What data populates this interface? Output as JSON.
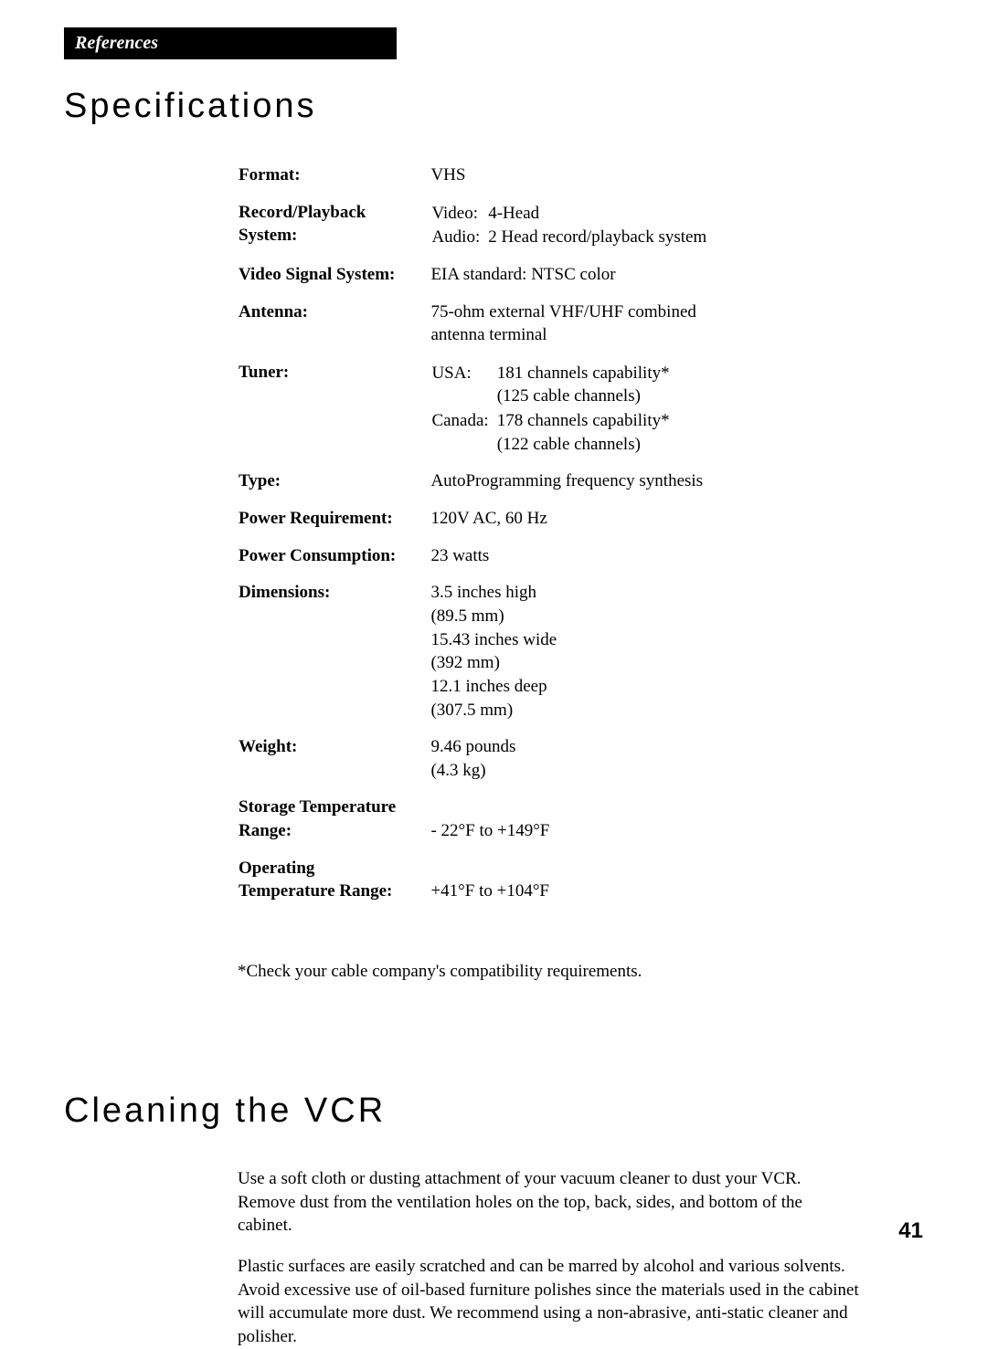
{
  "header": {
    "label": "References"
  },
  "specifications": {
    "title": "Specifications",
    "rows": {
      "format": {
        "label": "Format:",
        "value": "VHS"
      },
      "record": {
        "label1": "Record/Playback",
        "label2": "System:",
        "k1": "Video:",
        "v1": "4-Head",
        "k2": "Audio:",
        "v2": "2 Head record/playback system"
      },
      "video_signal": {
        "label": "Video Signal System:",
        "value": "EIA standard:  NTSC color"
      },
      "antenna": {
        "label": "Antenna:",
        "line1": "75-ohm external VHF/UHF combined",
        "line2": "antenna terminal"
      },
      "tuner": {
        "label": "Tuner:",
        "k1": "USA:",
        "v1a": "181 channels capability*",
        "v1b": "(125 cable channels)",
        "k2": "Canada:",
        "v2a": "178 channels capability*",
        "v2b": "(122 cable channels)"
      },
      "type": {
        "label": "Type:",
        "value": "AutoProgramming frequency synthesis"
      },
      "power_req": {
        "label": "Power Requirement:",
        "value": "120V AC, 60 Hz"
      },
      "power_con": {
        "label": "Power Consumption:",
        "value": "23 watts"
      },
      "dimensions": {
        "label": "Dimensions:",
        "l1": "3.5 inches high",
        "l2": "(89.5 mm)",
        "l3": "15.43 inches wide",
        "l4": "(392 mm)",
        "l5": "12.1 inches deep",
        "l6": "(307.5 mm)"
      },
      "weight": {
        "label": "Weight:",
        "l1": "9.46 pounds",
        "l2": "(4.3 kg)"
      },
      "storage": {
        "label1": "Storage Temperature",
        "label2": "Range:",
        "value": "- 22°F to +149°F"
      },
      "operating": {
        "label1": "Operating",
        "label2": "Temperature Range:",
        "value": "+41°F to +104°F"
      }
    },
    "footnote": "*Check your cable company's compatibility requirements."
  },
  "cleaning": {
    "title": "Cleaning the VCR",
    "p1": "Use a soft cloth or dusting attachment of your vacuum cleaner to dust your VCR.  Remove dust from the ventilation holes on the top, back, sides, and bottom of the cabinet.",
    "p2": "Plastic surfaces are easily scratched and can be marred by alcohol and various solvents.  Avoid excessive use of oil-based furniture polishes since the materials used in the cabinet will accumulate more dust.  We recommend using a non-abrasive, anti-static cleaner and polisher."
  },
  "page_number": "41"
}
